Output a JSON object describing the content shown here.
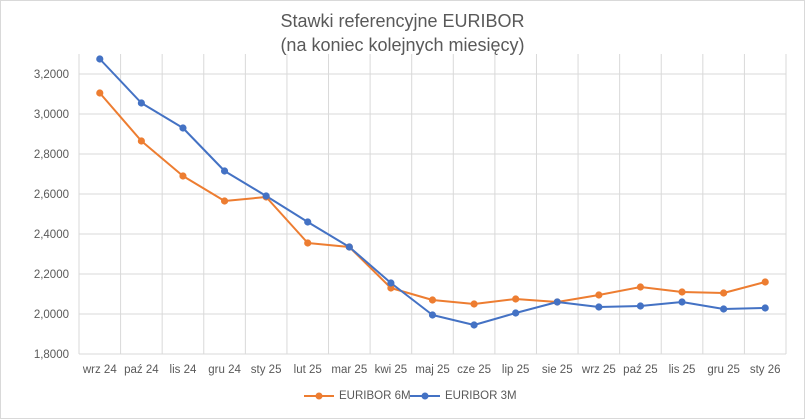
{
  "chart_data": {
    "type": "line",
    "title": "Stawki referencyjne EURIBOR",
    "subtitle": "(na koniec kolejnych miesięcy)",
    "xlabel": "",
    "ylabel": "",
    "ylim": [
      1.8,
      3.3
    ],
    "yticks": [
      "1,8000",
      "2,0000",
      "2,2000",
      "2,4000",
      "2,6000",
      "2,8000",
      "3,0000",
      "3,2000"
    ],
    "ytick_values": [
      1.8,
      2.0,
      2.2,
      2.4,
      2.6,
      2.8,
      3.0,
      3.2
    ],
    "grid": true,
    "legend_position": "bottom",
    "categories": [
      "wrz 24",
      "paź 24",
      "lis 24",
      "gru 24",
      "sty 25",
      "lut 25",
      "mar 25",
      "kwi 25",
      "maj 25",
      "cze 25",
      "lip 25",
      "sie 25",
      "wrz 25",
      "paź 25",
      "lis 25",
      "gru 25",
      "sty 26"
    ],
    "series": [
      {
        "name": "EURIBOR 6M",
        "color": "#ed7d31",
        "values": [
          3.105,
          2.865,
          2.69,
          2.565,
          2.585,
          2.355,
          2.335,
          2.13,
          2.07,
          2.05,
          2.075,
          2.06,
          2.095,
          2.135,
          2.11,
          2.105,
          2.16
        ]
      },
      {
        "name": "EURIBOR 3M",
        "color": "#4472c4",
        "values": [
          3.275,
          3.055,
          2.93,
          2.715,
          2.59,
          2.46,
          2.335,
          2.155,
          1.995,
          1.945,
          2.005,
          2.06,
          2.035,
          2.04,
          2.06,
          2.025,
          2.03
        ]
      }
    ]
  }
}
